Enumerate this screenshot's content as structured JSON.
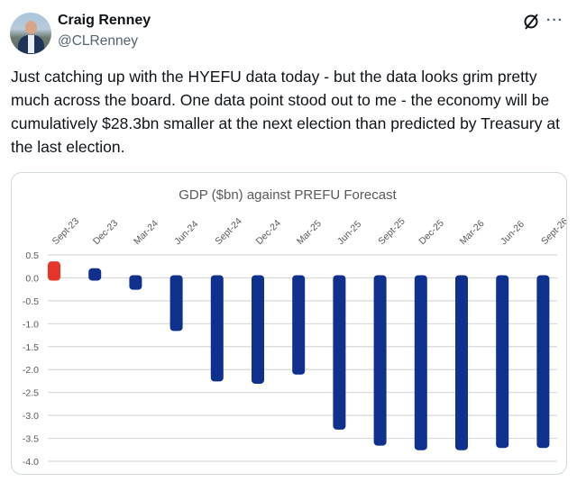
{
  "tweet": {
    "author_name": "Craig Renney",
    "author_handle": "@CLRenney",
    "text": "Just catching up with the HYEFU data today - but the data looks grim pretty much across the board. One data point stood out to me - the economy will be cumulatively $28.3bn smaller at the next election than predicted by Treasury at the last election.",
    "icons": {
      "grok": "grok-icon",
      "more": "more-options-icon"
    },
    "more_label": "···"
  },
  "chart_data": {
    "type": "bar",
    "title": "GDP ($bn) against PREFU Forecast",
    "xlabel": "",
    "ylabel": "",
    "categories": [
      "Sept-23",
      "Dec-23",
      "Mar-24",
      "Jun-24",
      "Sept-24",
      "Dec-24",
      "Mar-25",
      "Jun-25",
      "Sept-25",
      "Dec-25",
      "Mar-26",
      "Jun-26",
      "Sept-26"
    ],
    "values": [
      0.3,
      0.15,
      -0.2,
      -1.1,
      -2.2,
      -2.25,
      -2.05,
      -3.25,
      -3.6,
      -3.7,
      -3.7,
      -3.65,
      -3.65
    ],
    "bar_colors": [
      "#e8352a",
      "#10308e",
      "#10308e",
      "#10308e",
      "#10308e",
      "#10308e",
      "#10308e",
      "#10308e",
      "#10308e",
      "#10308e",
      "#10308e",
      "#10308e",
      "#10308e"
    ],
    "ylim": [
      -4.0,
      0.5
    ],
    "yticks": [
      "0.5",
      "0.0",
      "-0.5",
      "-1.0",
      "-1.5",
      "-2.0",
      "-2.5",
      "-3.0",
      "-3.5",
      "-4.0"
    ],
    "grid": true,
    "legend": "none"
  }
}
